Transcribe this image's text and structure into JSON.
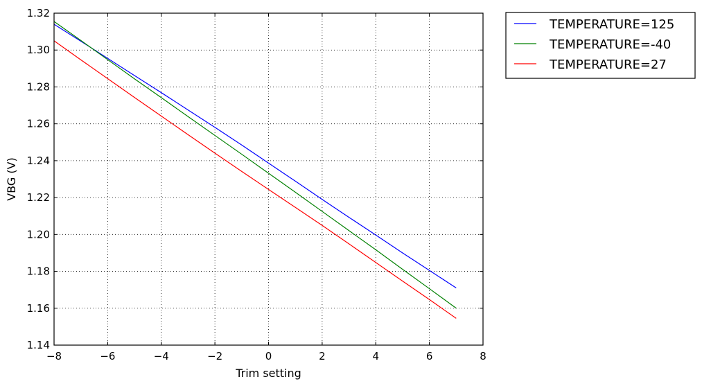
{
  "chart_data": {
    "type": "line",
    "title": "",
    "xlabel": "Trim setting",
    "ylabel": "VBG (V)",
    "xlim": [
      -8,
      8
    ],
    "ylim": [
      1.14,
      1.32
    ],
    "xticks": [
      -8,
      -6,
      -4,
      -2,
      0,
      2,
      4,
      6,
      8
    ],
    "yticks": [
      1.14,
      1.16,
      1.18,
      1.2,
      1.22,
      1.24,
      1.26,
      1.28,
      1.3,
      1.32
    ],
    "xtick_labels": [
      "−8",
      "−6",
      "−4",
      "−2",
      "0",
      "2",
      "4",
      "6",
      "8"
    ],
    "ytick_labels": [
      "1.14",
      "1.16",
      "1.18",
      "1.20",
      "1.22",
      "1.24",
      "1.26",
      "1.28",
      "1.30",
      "1.32"
    ],
    "grid": true,
    "legend_position": "outside-top-right",
    "x": [
      -8,
      -7,
      -6,
      -5,
      -4,
      -3,
      -2,
      -1,
      0,
      1,
      2,
      3,
      4,
      5,
      6,
      7
    ],
    "series": [
      {
        "name": "TEMPERATURE=125",
        "color": "#0000ff",
        "values": [
          1.314,
          1.3048,
          1.2955,
          1.2862,
          1.2769,
          1.2675,
          1.2581,
          1.2485,
          1.2387,
          1.2289,
          1.219,
          1.2093,
          1.1997,
          1.19,
          1.1805,
          1.171
        ]
      },
      {
        "name": "TEMPERATURE=-40",
        "color": "#008000",
        "values": [
          1.3155,
          1.3052,
          1.2948,
          1.2844,
          1.2742,
          1.2639,
          1.2537,
          1.2435,
          1.2332,
          1.2229,
          1.2125,
          1.2021,
          1.1917,
          1.1811,
          1.1706,
          1.16
        ]
      },
      {
        "name": "TEMPERATURE=27",
        "color": "#ff0000",
        "values": [
          1.305,
          1.2947,
          1.2845,
          1.2743,
          1.2642,
          1.2541,
          1.2441,
          1.2342,
          1.2244,
          1.2147,
          1.2049,
          1.1949,
          1.1848,
          1.1747,
          1.1647,
          1.1545
        ]
      }
    ]
  }
}
